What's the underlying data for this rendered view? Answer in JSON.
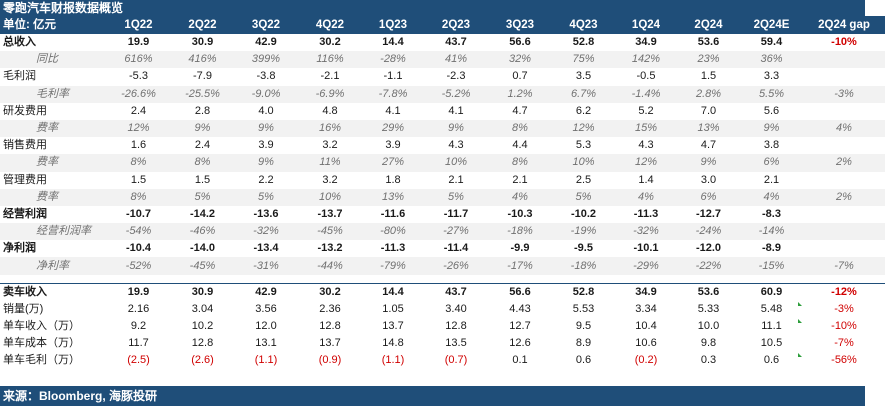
{
  "title": "零跑汽车财报数据概览",
  "header": {
    "unit_label": "单位: 亿元",
    "columns": [
      "1Q22",
      "2Q22",
      "3Q22",
      "4Q22",
      "1Q23",
      "2Q23",
      "3Q23",
      "4Q23",
      "1Q24",
      "2Q24",
      "2Q24E",
      "2Q24 gap"
    ]
  },
  "rows": [
    {
      "label": "总收入",
      "style": "bold",
      "values": [
        "19.9",
        "30.9",
        "42.9",
        "30.2",
        "14.4",
        "43.7",
        "56.6",
        "52.8",
        "34.9",
        "53.6",
        "59.4"
      ],
      "gap": "-10%"
    },
    {
      "label": "同比",
      "style": "sub",
      "values": [
        "616%",
        "416%",
        "399%",
        "116%",
        "-28%",
        "41%",
        "32%",
        "75%",
        "142%",
        "23%",
        "36%"
      ],
      "gap": ""
    },
    {
      "label": "毛利润",
      "style": "normal",
      "values": [
        "-5.3",
        "-7.9",
        "-3.8",
        "-2.1",
        "-1.1",
        "-2.3",
        "0.7",
        "3.5",
        "-0.5",
        "1.5",
        "3.3"
      ],
      "gap": ""
    },
    {
      "label": "毛利率",
      "style": "sub",
      "values": [
        "-26.6%",
        "-25.5%",
        "-9.0%",
        "-6.9%",
        "-7.8%",
        "-5.2%",
        "1.2%",
        "6.7%",
        "-1.4%",
        "2.8%",
        "5.5%"
      ],
      "gap": "-3%"
    },
    {
      "label": "研发费用",
      "style": "normal",
      "values": [
        "2.4",
        "2.8",
        "4.0",
        "4.8",
        "4.1",
        "4.1",
        "4.7",
        "6.2",
        "5.2",
        "7.0",
        "5.6"
      ],
      "gap": ""
    },
    {
      "label": "费率",
      "style": "sub",
      "values": [
        "12%",
        "9%",
        "9%",
        "16%",
        "29%",
        "9%",
        "8%",
        "12%",
        "15%",
        "13%",
        "9%"
      ],
      "gap": "4%"
    },
    {
      "label": "销售费用",
      "style": "normal",
      "values": [
        "1.6",
        "2.4",
        "3.9",
        "3.2",
        "3.9",
        "4.3",
        "4.4",
        "5.3",
        "4.3",
        "4.7",
        "3.8"
      ],
      "gap": ""
    },
    {
      "label": "费率",
      "style": "sub",
      "values": [
        "8%",
        "8%",
        "9%",
        "11%",
        "27%",
        "10%",
        "8%",
        "10%",
        "12%",
        "9%",
        "6%"
      ],
      "gap": "2%"
    },
    {
      "label": "管理费用",
      "style": "normal",
      "values": [
        "1.5",
        "1.5",
        "2.2",
        "3.2",
        "1.8",
        "2.1",
        "2.1",
        "2.5",
        "1.4",
        "3.0",
        "2.1"
      ],
      "gap": ""
    },
    {
      "label": "费率",
      "style": "sub",
      "values": [
        "8%",
        "5%",
        "5%",
        "10%",
        "13%",
        "5%",
        "4%",
        "5%",
        "4%",
        "6%",
        "4%"
      ],
      "gap": "2%"
    },
    {
      "label": "经营利润",
      "style": "bold",
      "values": [
        "-10.7",
        "-14.2",
        "-13.6",
        "-13.7",
        "-11.6",
        "-11.7",
        "-10.3",
        "-10.2",
        "-11.3",
        "-12.7",
        "-8.3"
      ],
      "gap": ""
    },
    {
      "label": "经营利润率",
      "style": "sub",
      "values": [
        "-54%",
        "-46%",
        "-32%",
        "-45%",
        "-80%",
        "-27%",
        "-18%",
        "-19%",
        "-32%",
        "-24%",
        "-14%"
      ],
      "gap": ""
    },
    {
      "label": "净利润",
      "style": "bold",
      "values": [
        "-10.4",
        "-14.0",
        "-13.4",
        "-13.2",
        "-11.3",
        "-11.4",
        "-9.9",
        "-9.5",
        "-10.1",
        "-12.0",
        "-8.9"
      ],
      "gap": ""
    },
    {
      "label": "净利率",
      "style": "sub",
      "values": [
        "-52%",
        "-45%",
        "-31%",
        "-44%",
        "-79%",
        "-26%",
        "-17%",
        "-18%",
        "-29%",
        "-22%",
        "-15%"
      ],
      "gap": "-7%"
    }
  ],
  "vehicle_rows": [
    {
      "label": "卖车收入",
      "style": "bold",
      "values": [
        "19.9",
        "30.9",
        "42.9",
        "30.2",
        "14.4",
        "43.7",
        "56.6",
        "52.8",
        "34.9",
        "53.6",
        "60.9"
      ],
      "gap": "-12%"
    },
    {
      "label": "销量(万)",
      "style": "normal",
      "values": [
        "2.16",
        "3.04",
        "3.56",
        "2.36",
        "1.05",
        "3.40",
        "4.43",
        "5.53",
        "3.34",
        "5.33",
        "5.48"
      ],
      "gap": "-3%"
    },
    {
      "label": "单车收入（万）",
      "style": "normal",
      "values": [
        "9.2",
        "10.2",
        "12.0",
        "12.8",
        "13.7",
        "12.8",
        "12.7",
        "9.5",
        "10.4",
        "10.0",
        "11.1"
      ],
      "gap": "-10%"
    },
    {
      "label": "单车成本（万）",
      "style": "normal",
      "values": [
        "11.7",
        "12.8",
        "13.1",
        "13.7",
        "14.8",
        "13.5",
        "12.6",
        "8.9",
        "10.6",
        "9.8",
        "10.5"
      ],
      "gap": "-7%"
    },
    {
      "label": "单车毛利（万）",
      "style": "normal",
      "values": [
        "(2.5)",
        "(2.6)",
        "(1.1)",
        "(0.9)",
        "(1.1)",
        "(0.7)",
        "0.1",
        "0.6",
        "(0.2)",
        "0.3",
        "0.6"
      ],
      "gap": "-56%"
    }
  ],
  "source": "来源：Bloomberg, 海豚投研",
  "colors": {
    "header_bg": "#1f4e79",
    "negative": "#d00000",
    "sub_row_bg": "#f2f2f2",
    "flag": "#2e9e3c"
  }
}
